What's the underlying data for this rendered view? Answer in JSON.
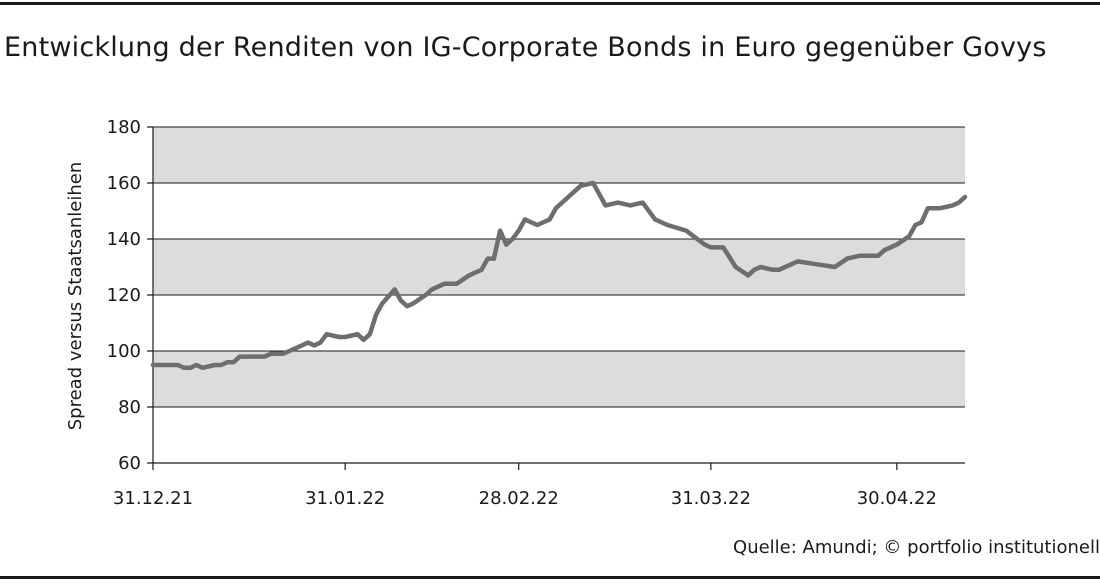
{
  "title": "Entwicklung der Renditen von IG-Corporate Bonds in Euro gegenüber Govys",
  "source": "Quelle: Amundi; © portfolio institutionell",
  "colors": {
    "band": "#dcdcdc",
    "line": "#6e6e6e",
    "axis": "#1a1a1a",
    "grid": "#1a1a1a"
  },
  "chart_data": {
    "type": "line",
    "title": "Entwicklung der Renditen von IG-Corporate Bonds in Euro gegenüber Govys",
    "ylabel": "Spread versus Staatsanleihen",
    "xlabel": "",
    "ylim": [
      60,
      180
    ],
    "yticks": [
      60,
      80,
      100,
      120,
      140,
      160,
      180
    ],
    "xlim": [
      "2021-12-31",
      "2022-05-11"
    ],
    "xticks": [
      "2021-12-31",
      "2022-01-31",
      "2022-02-28",
      "2022-03-31",
      "2022-04-30"
    ],
    "xticklabels": [
      "31.12.21",
      "31.01.22",
      "28.02.22",
      "31.03.22",
      "30.04.22"
    ],
    "grid": "horizontal",
    "series": [
      {
        "x": [
          "2021-12-31",
          "2022-01-03",
          "2022-01-04",
          "2022-01-05",
          "2022-01-06",
          "2022-01-07",
          "2022-01-08",
          "2022-01-10",
          "2022-01-11",
          "2022-01-12",
          "2022-01-13",
          "2022-01-14",
          "2022-01-16",
          "2022-01-18",
          "2022-01-19",
          "2022-01-21",
          "2022-01-22",
          "2022-01-24",
          "2022-01-25",
          "2022-01-26",
          "2022-01-27",
          "2022-01-28",
          "2022-01-30",
          "2022-01-31",
          "2022-02-02",
          "2022-02-03",
          "2022-02-04",
          "2022-02-05",
          "2022-02-06",
          "2022-02-08",
          "2022-02-09",
          "2022-02-10",
          "2022-02-11",
          "2022-02-13",
          "2022-02-14",
          "2022-02-16",
          "2022-02-18",
          "2022-02-20",
          "2022-02-21",
          "2022-02-22",
          "2022-02-23",
          "2022-02-24",
          "2022-02-25",
          "2022-02-26",
          "2022-02-27",
          "2022-02-28",
          "2022-03-01",
          "2022-03-03",
          "2022-03-05",
          "2022-03-06",
          "2022-03-08",
          "2022-03-10",
          "2022-03-12",
          "2022-03-13",
          "2022-03-14",
          "2022-03-16",
          "2022-03-18",
          "2022-03-20",
          "2022-03-22",
          "2022-03-24",
          "2022-03-27",
          "2022-03-30",
          "2022-03-31",
          "2022-04-01",
          "2022-04-02",
          "2022-04-04",
          "2022-04-06",
          "2022-04-07",
          "2022-04-08",
          "2022-04-10",
          "2022-04-11",
          "2022-04-13",
          "2022-04-14",
          "2022-04-17",
          "2022-04-20",
          "2022-04-22",
          "2022-04-24",
          "2022-04-26",
          "2022-04-27",
          "2022-04-28",
          "2022-04-30",
          "2022-05-02",
          "2022-05-03",
          "2022-05-04",
          "2022-05-05",
          "2022-05-07",
          "2022-05-09",
          "2022-05-10",
          "2022-05-11"
        ],
        "y": [
          95,
          95,
          95,
          94,
          94,
          95,
          94,
          95,
          95,
          96,
          96,
          98,
          98,
          98,
          99,
          99,
          100,
          102,
          103,
          102,
          103,
          106,
          105,
          105,
          106,
          104,
          106,
          113,
          117,
          122,
          118,
          116,
          117,
          120,
          122,
          124,
          124,
          127,
          128,
          129,
          133,
          133,
          143,
          138,
          140,
          143,
          147,
          145,
          147,
          151,
          155,
          159,
          160,
          156,
          152,
          153,
          152,
          153,
          147,
          145,
          143,
          138,
          137,
          137,
          137,
          130,
          127,
          129,
          130,
          129,
          129,
          131,
          132,
          131,
          130,
          133,
          134,
          134,
          134,
          136,
          138,
          141,
          145,
          146,
          151,
          151,
          152,
          153,
          155
        ]
      }
    ]
  }
}
